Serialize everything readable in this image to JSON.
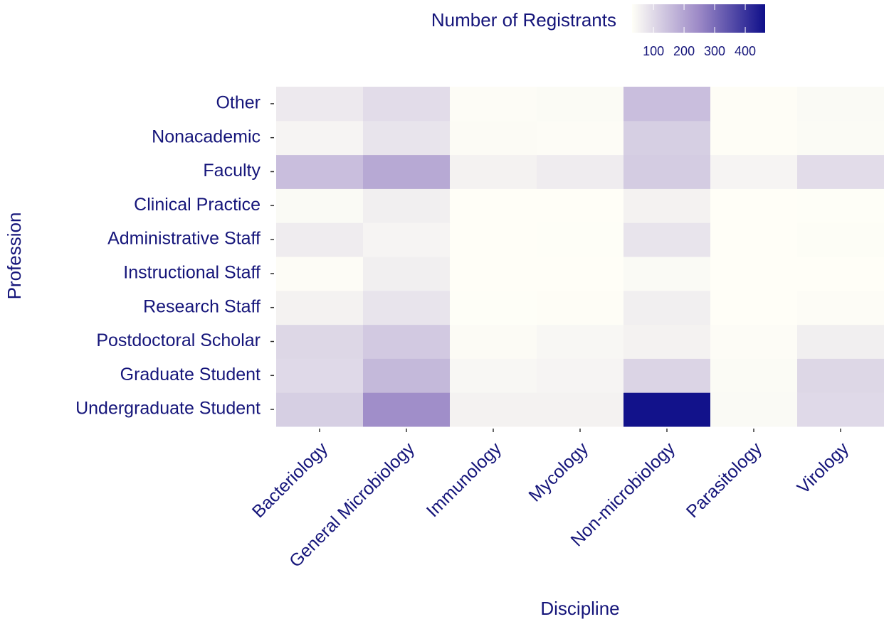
{
  "chart_data": {
    "type": "heatmap",
    "x_label": "Discipline",
    "y_label": "Profession",
    "legend_title": "Number of Registrants",
    "x_categories": [
      "Bacteriology",
      "General Microbiology",
      "Immunology",
      "Mycology",
      "Non-microbiology",
      "Parasitology",
      "Virology"
    ],
    "y_categories": [
      "Undergraduate Student",
      "Graduate Student",
      "Postdoctoral Scholar",
      "Research Staff",
      "Instructional Staff",
      "Administrative Staff",
      "Clinical Practice",
      "Faculty",
      "Nonacademic",
      "Other"
    ],
    "values": [
      [
        120,
        240,
        55,
        55,
        460,
        40,
        100
      ],
      [
        100,
        160,
        45,
        50,
        110,
        38,
        105
      ],
      [
        105,
        130,
        37,
        45,
        55,
        35,
        60
      ],
      [
        55,
        80,
        32,
        33,
        60,
        31,
        35
      ],
      [
        35,
        60,
        31,
        31,
        40,
        31,
        31
      ],
      [
        65,
        50,
        31,
        32,
        80,
        31,
        34
      ],
      [
        40,
        60,
        31,
        31,
        55,
        31,
        32
      ],
      [
        150,
        190,
        55,
        65,
        125,
        50,
        95
      ],
      [
        50,
        80,
        37,
        35,
        120,
        33,
        38
      ],
      [
        70,
        95,
        35,
        38,
        150,
        33,
        40
      ]
    ],
    "clim": [
      30,
      465
    ],
    "cticks": [
      100,
      200,
      300,
      400
    ],
    "colors": [
      "#fffff7",
      "#9d8ac7",
      "#0f0f8a"
    ]
  }
}
